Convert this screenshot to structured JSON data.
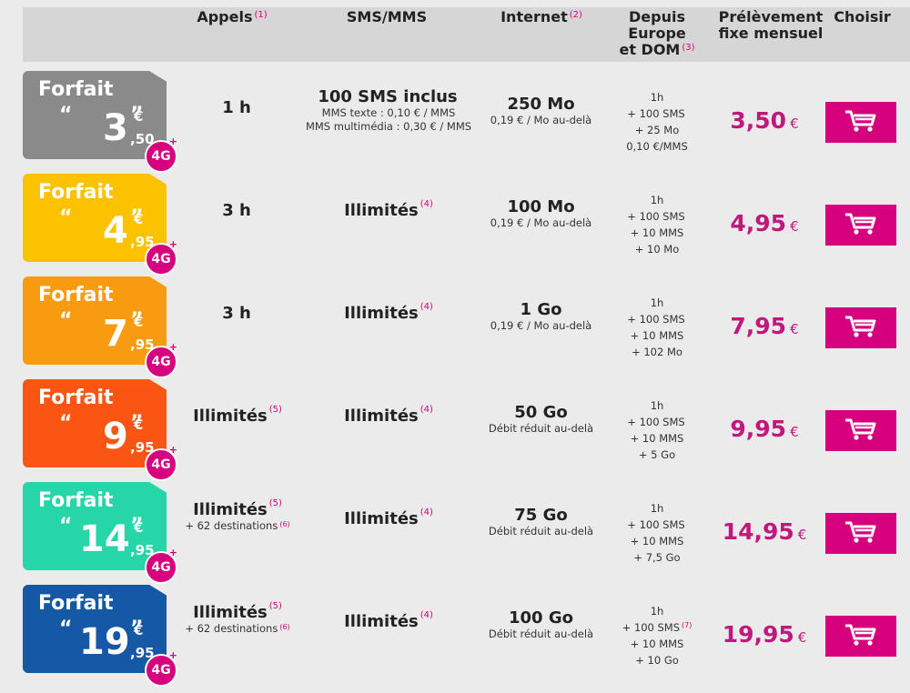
{
  "header": {
    "appels": "Appels",
    "appels_note": "(1)",
    "sms": "SMS/MMS",
    "internet": "Internet",
    "internet_note": "(2)",
    "europe_l1": "Depuis Europe",
    "europe_l2": "et DOM",
    "europe_note": "(3)",
    "prelevement_l1": "Prélèvement",
    "prelevement_l2": "fixe mensuel",
    "choisir": "Choisir"
  },
  "plans": [
    {
      "card_title": "Forfait",
      "card_color": "#8a8a8a",
      "price_int": "3",
      "price_cent": "50",
      "badge": "4G",
      "appels": "1 h",
      "appels_note": "",
      "appels_sub": "",
      "appels_sub_note": "",
      "sms": "100 SMS inclus",
      "sms_note": "",
      "sms_sub1": "MMS texte : 0,10 € / MMS",
      "sms_sub2": "MMS multimédia : 0,30 € / MMS",
      "internet": "250 Mo",
      "internet_sub": "0,19 € / Mo au-delà",
      "europe": [
        "1h",
        "+ 100 SMS",
        "+ 25 Mo",
        "0,10 €/MMS"
      ],
      "europe_note": "",
      "price": "3,50",
      "currency": "€",
      "cart_icon": "shopping-cart-icon"
    },
    {
      "card_title": "Forfait",
      "card_color": "#fcc200",
      "price_int": "4",
      "price_cent": "95",
      "badge": "4G",
      "appels": "3 h",
      "appels_note": "",
      "appels_sub": "",
      "appels_sub_note": "",
      "sms": "Illimités",
      "sms_note": "(4)",
      "sms_sub1": "",
      "sms_sub2": "",
      "internet": "100 Mo",
      "internet_sub": "0,19 € / Mo au-delà",
      "europe": [
        "1h",
        "+ 100 SMS",
        "+ 10 MMS",
        "+ 10 Mo"
      ],
      "europe_note": "",
      "price": "4,95",
      "currency": "€",
      "cart_icon": "shopping-cart-icon"
    },
    {
      "card_title": "Forfait",
      "card_color": "#f89b10",
      "price_int": "7",
      "price_cent": "95",
      "badge": "4G",
      "appels": "3 h",
      "appels_note": "",
      "appels_sub": "",
      "appels_sub_note": "",
      "sms": "Illimités",
      "sms_note": "(4)",
      "sms_sub1": "",
      "sms_sub2": "",
      "internet": "1 Go",
      "internet_sub": "0,19 € / Mo au-delà",
      "europe": [
        "1h",
        "+ 100 SMS",
        "+ 10 MMS",
        "+ 102 Mo"
      ],
      "europe_note": "",
      "price": "7,95",
      "currency": "€",
      "cart_icon": "shopping-cart-icon"
    },
    {
      "card_title": "Forfait",
      "card_color": "#fa5512",
      "price_int": "9",
      "price_cent": "95",
      "badge": "4G",
      "appels": "Illimités",
      "appels_note": "(5)",
      "appels_sub": "",
      "appels_sub_note": "",
      "sms": "Illimités",
      "sms_note": "(4)",
      "sms_sub1": "",
      "sms_sub2": "",
      "internet": "50 Go",
      "internet_sub": "Débit réduit au-delà",
      "europe": [
        "1h",
        "+ 100 SMS",
        "+ 10 MMS",
        "+ 5 Go"
      ],
      "europe_note": "",
      "price": "9,95",
      "currency": "€",
      "cart_icon": "shopping-cart-icon"
    },
    {
      "card_title": "Forfait",
      "card_color": "#26d6a8",
      "price_int": "14",
      "price_cent": "95",
      "badge": "4G",
      "appels": "Illimités",
      "appels_note": "(5)",
      "appels_sub": "+ 62 destinations",
      "appels_sub_note": "(6)",
      "sms": "Illimités",
      "sms_note": "(4)",
      "sms_sub1": "",
      "sms_sub2": "",
      "internet": "75 Go",
      "internet_sub": "Débit réduit au-delà",
      "europe": [
        "1h",
        "+ 100 SMS",
        "+ 10 MMS",
        "+ 7,5 Go"
      ],
      "europe_note": "",
      "price": "14,95",
      "currency": "€",
      "cart_icon": "shopping-cart-icon"
    },
    {
      "card_title": "Forfait",
      "card_color": "#1558a6",
      "price_int": "19",
      "price_cent": "95",
      "badge": "4G",
      "appels": "Illimités",
      "appels_note": "(5)",
      "appels_sub": "+ 62 destinations",
      "appels_sub_note": "(6)",
      "sms": "Illimités",
      "sms_note": "(4)",
      "sms_sub1": "",
      "sms_sub2": "",
      "internet": "100 Go",
      "internet_sub": "Débit réduit au-delà",
      "europe": [
        "1h",
        "+ 100 SMS",
        "+ 10 MMS",
        "+ 10 Go"
      ],
      "europe_note": "(7)",
      "price": "19,95",
      "currency": "€",
      "cart_icon": "shopping-cart-icon"
    }
  ],
  "colors": {
    "accent": "#d6007f",
    "price": "#c0187d",
    "header_bg": "#d6d6d6",
    "page_bg": "#ebebeb"
  }
}
